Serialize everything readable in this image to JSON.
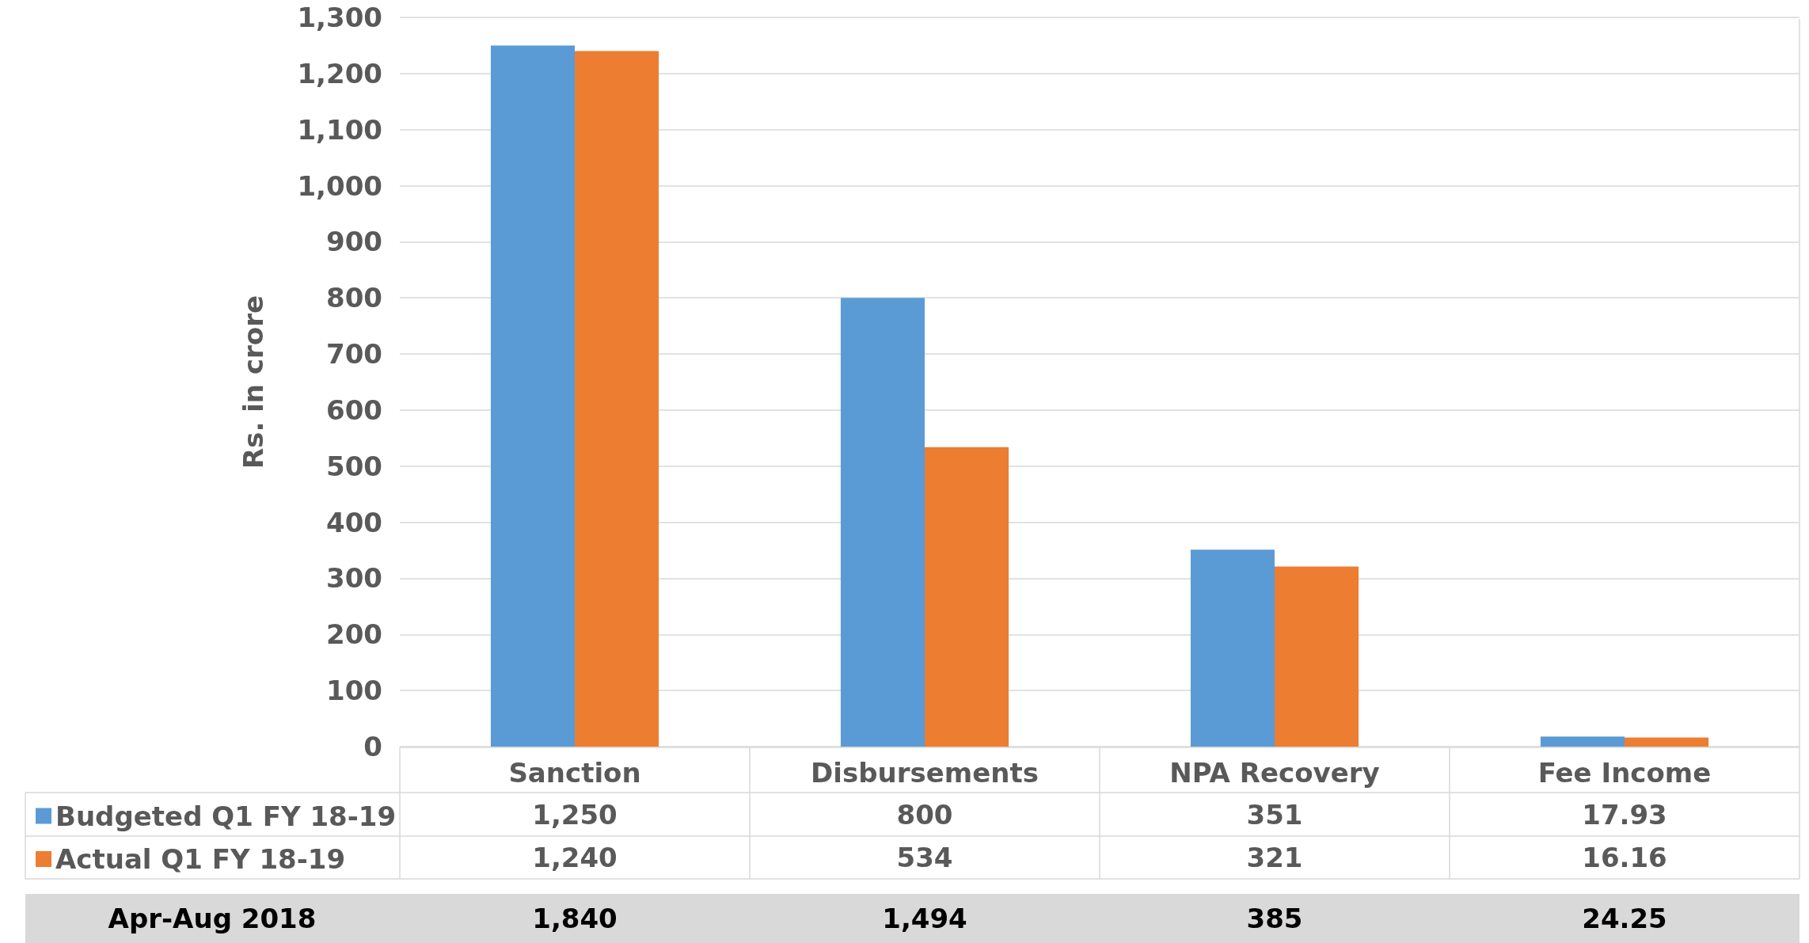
{
  "chart_data": {
    "type": "bar",
    "ylabel": "Rs. in crore",
    "categories": [
      "Sanction",
      "Disbursements",
      "NPA Recovery",
      "Fee Income"
    ],
    "series": [
      {
        "name": "Budgeted Q1 FY 18-19",
        "color": "#5b9bd5",
        "values": [
          1250,
          800,
          351,
          17.93
        ],
        "value_labels": [
          "1,250",
          "800",
          "351",
          "17.93"
        ]
      },
      {
        "name": "Actual Q1 FY 18-19",
        "color": "#ed7d31",
        "values": [
          1240,
          534,
          321,
          16.16
        ],
        "value_labels": [
          "1,240",
          "534",
          "321",
          "16.16"
        ]
      }
    ],
    "ylim": [
      0,
      1300
    ],
    "yticks": [
      0,
      100,
      200,
      300,
      400,
      500,
      600,
      700,
      800,
      900,
      {
        "value": 1000,
        "label": "1,000"
      },
      {
        "value": 1100,
        "label": "1,100"
      },
      {
        "value": 1200,
        "label": "1,200"
      },
      {
        "value": 1300,
        "label": "1,300"
      }
    ],
    "grid": "y",
    "legend": "bottom",
    "annotations": [
      "Apr-Aug 2018",
      "1,840",
      "1,494",
      "385",
      "24.25"
    ]
  }
}
